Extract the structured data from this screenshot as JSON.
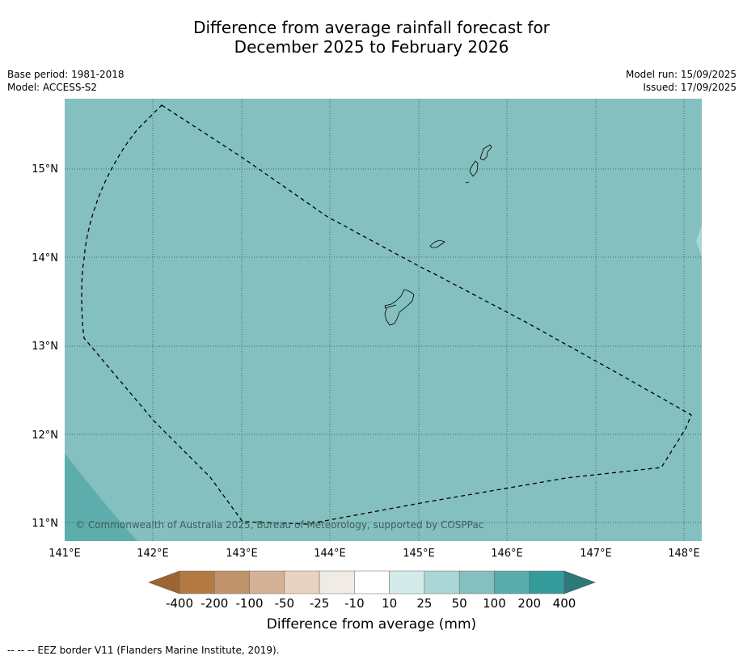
{
  "title_line1": "Difference from average rainfall forecast for",
  "title_line2": "December 2025 to February 2026",
  "base_period": "Base period: 1981-2018",
  "model": "Model: ACCESS-S2",
  "model_run": "Model run: 15/09/2025",
  "issued": "Issued: 17/09/2025",
  "lat_labels": [
    "15°N",
    "14°N",
    "13°N",
    "12°N",
    "11°N"
  ],
  "lon_labels": [
    "141°E",
    "142°E",
    "143°E",
    "144°E",
    "145°E",
    "146°E",
    "147°E",
    "148°E"
  ],
  "copyright": "© Commonwealth of Australia 2025, Bureau of Meteorology, supported by COSPPac",
  "colorbar": {
    "ticks": [
      "-400",
      "-200",
      "-100",
      "-50",
      "-25",
      "-10",
      "10",
      "25",
      "50",
      "100",
      "200",
      "400"
    ],
    "colors": [
      "#9c6532",
      "#b27a42",
      "#c0936a",
      "#d5b295",
      "#e8d3c2",
      "#f0ebe6",
      "#ffffff",
      "#d4ebe9",
      "#aad6d5",
      "#84c0bf",
      "#58acab",
      "#359b9a",
      "#2b7978"
    ],
    "title": "Difference from average (mm)"
  },
  "map_fill": {
    "dominant": "#84c0bf",
    "southwest_corner": "#5dadac",
    "east_edge": "#aad6d5"
  },
  "footnote": "--  --  -- EEZ border V11 (Flanders Marine Institute, 2019)."
}
